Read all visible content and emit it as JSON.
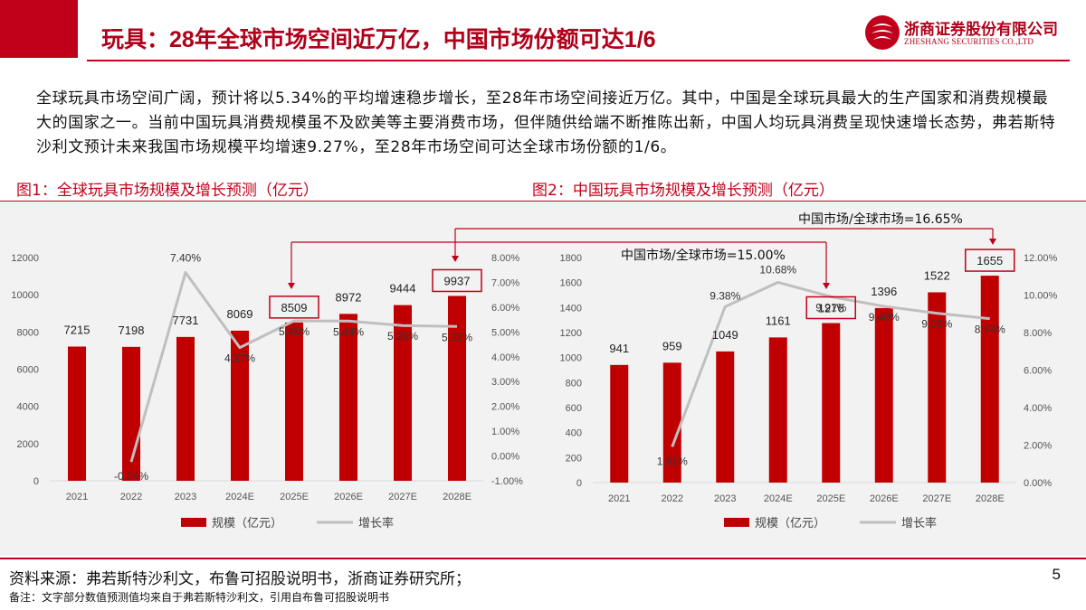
{
  "header": {
    "title": "玩具：28年全球市场空间近万亿，中国市场份额可达1/6",
    "logo_cn": "浙商证券股份有限公司",
    "logo_en": "ZHESHANG SECURITIES CO.,LTD"
  },
  "intro": "全球玩具市场空间广阔，预计将以5.34%的平均增速稳步增长，至28年市场空间接近万亿。其中，中国是全球玩具最大的生产国家和消费规模最大的国家之一。当前中国玩具消费规模虽不及欧美等主要消费市场，但伴随供给端不断推陈出新，中国人均玩具消费呈现快速增长态势，弗若斯特沙利文预计未来我国市场规模平均增速9.27%，至28年市场空间可达全球市场份额的1/6。",
  "colors": {
    "accent": "#c0001a",
    "bar": "#c00000",
    "line": "#bfbfbf"
  },
  "chart_data": [
    {
      "type": "bar",
      "title": "图1：全球玩具市场规模及增长预测（亿元）",
      "categories": [
        "2021",
        "2022",
        "2023",
        "2024E",
        "2025E",
        "2026E",
        "2027E",
        "2028E"
      ],
      "series": [
        {
          "name": "规模（亿元）",
          "type": "bar",
          "axis": "left",
          "values": [
            7215,
            7198,
            7731,
            8069,
            8509,
            8972,
            9444,
            9937
          ],
          "labels": [
            "7215",
            "7198",
            "7731",
            "8069",
            "8509",
            "8972",
            "9444",
            "9937"
          ]
        },
        {
          "name": "增长率",
          "type": "line",
          "axis": "right",
          "values": [
            null,
            -0.24,
            7.4,
            4.37,
            5.45,
            5.44,
            5.26,
            5.22
          ],
          "labels": [
            "",
            "-0.24%",
            "7.40%",
            "4.37%",
            "5.45%",
            "5.44%",
            "5.26%",
            "5.22%"
          ]
        }
      ],
      "ylim": [
        0,
        12000
      ],
      "yticks": [
        "0",
        "2000",
        "4000",
        "6000",
        "8000",
        "10000",
        "12000"
      ],
      "y2lim": [
        -1,
        8
      ],
      "y2ticks": [
        "-1.00%",
        "0.00%",
        "1.00%",
        "2.00%",
        "3.00%",
        "4.00%",
        "5.00%",
        "6.00%",
        "7.00%",
        "8.00%"
      ],
      "legend": {
        "placement": "bottom",
        "bar_label": "规模（亿元）",
        "line_label": "增长率"
      }
    },
    {
      "type": "bar",
      "title": "图2：中国玩具市场规模及增长预测（亿元）",
      "categories": [
        "2021",
        "2022",
        "2023",
        "2024E",
        "2025E",
        "2026E",
        "2027E",
        "2028E"
      ],
      "series": [
        {
          "name": "规模（亿元）",
          "type": "bar",
          "axis": "left",
          "values": [
            941,
            959,
            1049,
            1161,
            1276,
            1396,
            1522,
            1655
          ],
          "labels": [
            "941",
            "959",
            "1049",
            "1161",
            "1276",
            "1396",
            "1522",
            "1655"
          ]
        },
        {
          "name": "增长率",
          "type": "line",
          "axis": "right",
          "values": [
            null,
            1.91,
            9.38,
            10.68,
            9.91,
            9.4,
            9.03,
            8.74
          ],
          "labels": [
            "",
            "1.91%",
            "9.38%",
            "10.68%",
            "9.91%",
            "9.40%",
            "9.03%",
            "8.74%"
          ]
        }
      ],
      "ylim": [
        0,
        1800
      ],
      "yticks": [
        "0",
        "200",
        "400",
        "600",
        "800",
        "1000",
        "1200",
        "1400",
        "1600",
        "1800"
      ],
      "y2lim": [
        0,
        12
      ],
      "y2ticks": [
        "0.00%",
        "2.00%",
        "4.00%",
        "6.00%",
        "8.00%",
        "10.00%",
        "12.00%"
      ],
      "legend": {
        "placement": "bottom",
        "bar_label": "规模（亿元）",
        "line_label": "增长率"
      }
    }
  ],
  "annotations": {
    "share_2025": "中国市场/全球市场=15.00%",
    "share_2028": "中国市场/全球市场=16.65%"
  },
  "footer": {
    "source": "资料来源：弗若斯特沙利文，布鲁可招股说明书，浙商证券研究所；",
    "note": "备注：文字部分数值预测值均来自于弗若斯特沙利文，引用自布鲁可招股说明书",
    "page": "5"
  }
}
